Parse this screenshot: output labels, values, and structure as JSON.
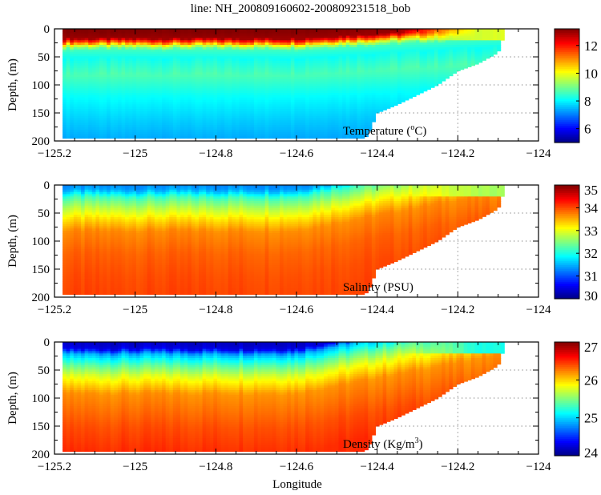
{
  "title": "line: NH_200809160602-200809231518_bob",
  "xlabel": "Longitude",
  "chart_data": [
    {
      "type": "heatmap",
      "variable_label": [
        "Temperature (",
        "o",
        "C)"
      ],
      "ylabel": "Depth, (m)",
      "xlim": [
        -125.2,
        -124
      ],
      "ylim": [
        200,
        0
      ],
      "xticks": [
        "-125.2",
        "-125",
        "-124.8",
        "-124.6",
        "-124.4",
        "-124.2",
        "-124"
      ],
      "yticks": [
        "0",
        "50",
        "100",
        "150",
        "200"
      ],
      "colorbar": {
        "range": [
          5,
          13.2
        ],
        "ticks": [
          "6",
          "8",
          "10",
          "12"
        ],
        "colormap": "jet"
      },
      "offshore_profile": {
        "depth": [
          0,
          15,
          22,
          28,
          35,
          50,
          80,
          120,
          160,
          195
        ],
        "value": [
          13.2,
          13,
          11.5,
          9.8,
          8.6,
          8.2,
          8.7,
          8.1,
          7.7,
          7.4
        ]
      },
      "nearshore_surface_value": 9.8
    },
    {
      "type": "heatmap",
      "variable_label": [
        "Salinity (PSU)",
        "",
        ""
      ],
      "ylabel": "Depth, (m)",
      "xlim": [
        -125.2,
        -124
      ],
      "ylim": [
        200,
        0
      ],
      "xticks": [
        "-125.2",
        "-125",
        "-124.8",
        "-124.6",
        "-124.4",
        "-124.2",
        "-124"
      ],
      "yticks": [
        "0",
        "50",
        "100",
        "150",
        "200"
      ],
      "colorbar": {
        "range": [
          30,
          35
        ],
        "ticks": [
          "30",
          "31",
          "32",
          "33",
          "34",
          "35"
        ],
        "colormap": "jet"
      },
      "offshore_profile": {
        "depth": [
          0,
          8,
          20,
          40,
          60,
          80,
          120,
          160,
          195
        ],
        "value": [
          31.3,
          31.5,
          32.2,
          32.8,
          33.3,
          33.7,
          33.9,
          34.0,
          34.05
        ]
      },
      "nearshore_surface_value": 32.7
    },
    {
      "type": "heatmap",
      "variable_label": [
        "Density (Kg/m",
        "3",
        ")"
      ],
      "ylabel": "Depth, (m)",
      "xlim": [
        -125.2,
        -124
      ],
      "ylim": [
        200,
        0
      ],
      "xticks": [
        "-125.2",
        "-125",
        "-124.8",
        "-124.6",
        "-124.4",
        "-124.2",
        "-124"
      ],
      "yticks": [
        "0",
        "50",
        "100",
        "150",
        "200"
      ],
      "colorbar": {
        "range": [
          24,
          27
        ],
        "ticks": [
          "24",
          "25",
          "26",
          "27"
        ],
        "colormap": "jet"
      },
      "offshore_profile": {
        "depth": [
          0,
          10,
          20,
          40,
          60,
          90,
          150,
          195
        ],
        "value": [
          24.2,
          24.3,
          24.9,
          25.4,
          25.8,
          26.2,
          26.4,
          26.5
        ]
      },
      "nearshore_surface_value": 25.2
    }
  ],
  "data_extent": {
    "lon_start": -125.18,
    "bottom_boundary": {
      "lon": [
        -125.18,
        -124.43,
        -124.42,
        -124.4,
        -124.35,
        -124.25,
        -124.2,
        -124.15,
        -124.1,
        -124.09,
        -124.085
      ],
      "max_depth": [
        195,
        195,
        185,
        150,
        135,
        100,
        75,
        62,
        42,
        22,
        0
      ]
    }
  },
  "reference_lines": {
    "depths": [
      50,
      100,
      150
    ],
    "lon": -124.2,
    "style": "dotted"
  }
}
